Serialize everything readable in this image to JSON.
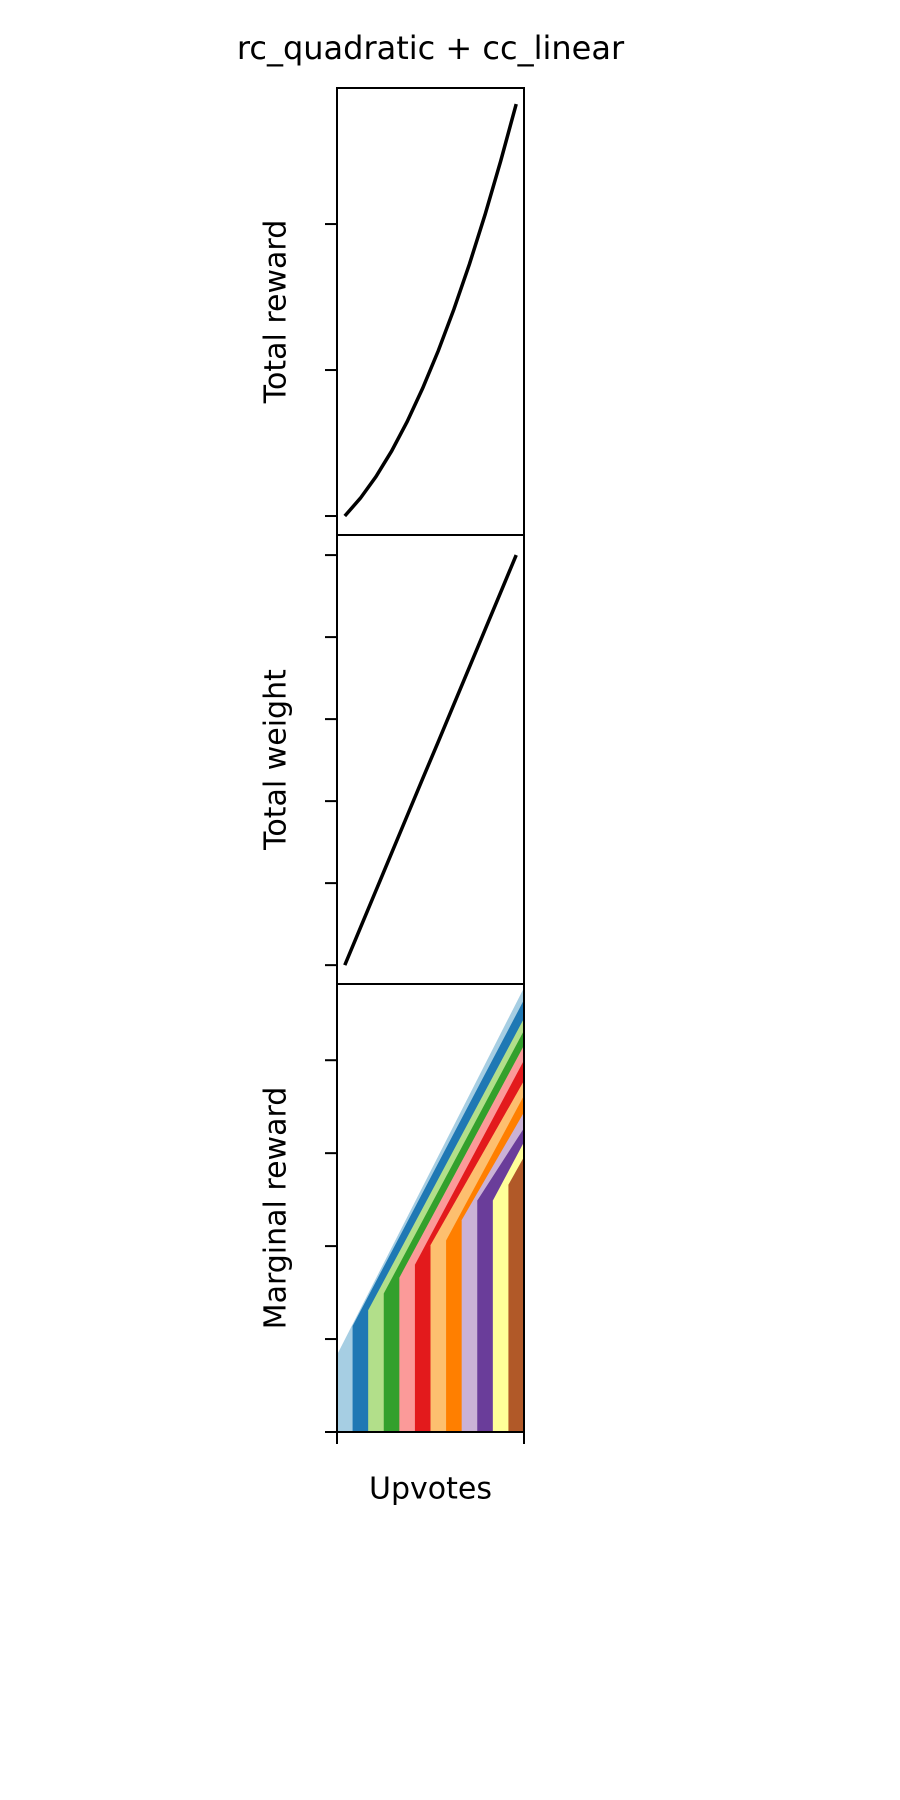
{
  "chart_data": [
    {
      "type": "line",
      "title": "rc_quadratic + cc_linear",
      "ylabel": "Total reward",
      "color": "#000000",
      "x": [
        0.5,
        1.5,
        2.5,
        3.5,
        4.5,
        5.5,
        6.5,
        7.5,
        8.5,
        9.5,
        10.5,
        11.5
      ],
      "values": [
        0,
        6.1,
        13.5,
        22.2,
        32.3,
        43.8,
        56.6,
        70.8,
        86.3,
        103.2,
        121.5,
        141.1
      ],
      "xlim": [
        0,
        12
      ],
      "ylim": [
        -6.5,
        146.6
      ],
      "yticks": [
        0,
        50,
        100
      ]
    },
    {
      "type": "line",
      "ylabel": "Total weight",
      "color": "#000000",
      "x": [
        0.5,
        1.5,
        2.5,
        3.5,
        4.5,
        5.5,
        6.5,
        7.5,
        8.5,
        9.5,
        10.5,
        11.5
      ],
      "values": [
        0,
        0.91,
        1.82,
        2.73,
        3.64,
        4.55,
        5.45,
        6.36,
        7.27,
        8.18,
        9.09,
        10
      ],
      "xlim": [
        0,
        12
      ],
      "ylim": [
        -0.46,
        10.49
      ],
      "yticks": [
        0,
        2,
        4,
        6,
        8,
        10
      ]
    },
    {
      "type": "area",
      "ylabel": "Marginal reward",
      "xlabel": "Upvotes",
      "series": [
        {
          "color": "#a6cee3",
          "x": [
            0,
            12
          ],
          "values": [
            0.83,
            4.78
          ]
        },
        {
          "color": "#1f78b4",
          "x": [
            1,
            12
          ],
          "values": [
            1.14,
            4.65
          ]
        },
        {
          "color": "#b2df8a",
          "x": [
            2,
            12
          ],
          "values": [
            1.31,
            4.45
          ]
        },
        {
          "color": "#33a02c",
          "x": [
            3,
            12
          ],
          "values": [
            1.49,
            4.32
          ]
        },
        {
          "color": "#fb9a99",
          "x": [
            4,
            12
          ],
          "values": [
            1.66,
            4.16
          ]
        },
        {
          "color": "#e31a1c",
          "x": [
            5,
            12
          ],
          "values": [
            1.8,
            4.0
          ]
        },
        {
          "color": "#fdbf6f",
          "x": [
            6,
            12
          ],
          "values": [
            2.01,
            3.78
          ]
        },
        {
          "color": "#ff7f00",
          "x": [
            7,
            12
          ],
          "values": [
            2.06,
            3.62
          ]
        },
        {
          "color": "#cab2d6",
          "x": [
            8,
            12
          ],
          "values": [
            2.28,
            3.44
          ]
        },
        {
          "color": "#6a3d9a",
          "x": [
            9,
            12
          ],
          "values": [
            2.49,
            3.27
          ]
        },
        {
          "color": "#ffff99",
          "x": [
            10,
            12
          ],
          "values": [
            2.49,
            3.12
          ]
        },
        {
          "color": "#b15928",
          "x": [
            11,
            12
          ],
          "values": [
            2.66,
            2.96
          ]
        }
      ],
      "xlim": [
        0,
        12
      ],
      "xticks": [
        0,
        12
      ],
      "ylim": [
        0,
        4.82
      ],
      "yticks": [
        0,
        1,
        2,
        3,
        4
      ]
    }
  ]
}
